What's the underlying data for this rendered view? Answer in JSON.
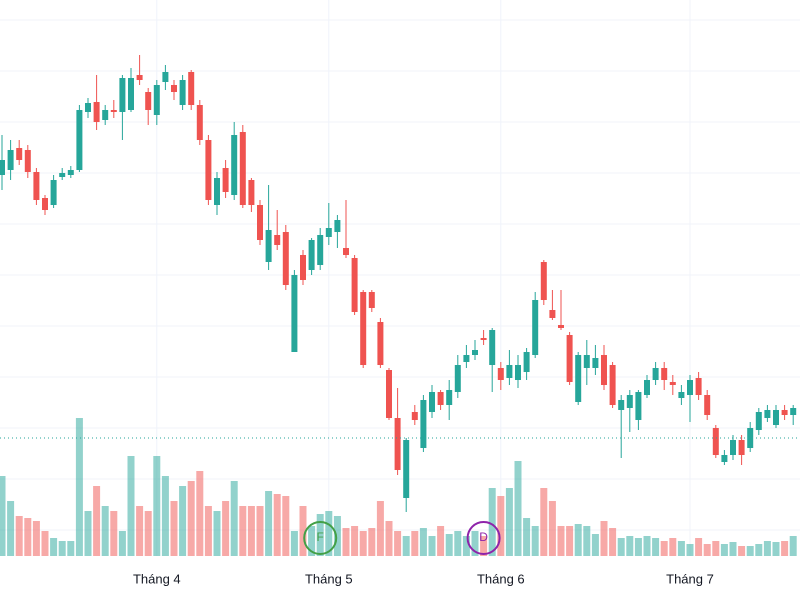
{
  "chart_data": {
    "type": "candlestick",
    "ylim": [
      44,
      600
    ],
    "y2lim": [
      0,
      556
    ],
    "grid_y": [
      580,
      529,
      478,
      427,
      376,
      325,
      274,
      223,
      172,
      121,
      70
    ],
    "xticks": [
      {
        "value": 18,
        "label": "Tháng 4"
      },
      {
        "value": 38,
        "label": "Tháng 5"
      },
      {
        "value": 58,
        "label": "Tháng 6"
      },
      {
        "value": 80,
        "label": "Tháng 7"
      }
    ],
    "up_color": "#26a69a",
    "down_color": "#ef5350",
    "price_line": 162,
    "markers": [
      {
        "label": "F",
        "index": 37,
        "color": "#43a047"
      },
      {
        "label": "D",
        "index": 56,
        "color": "#8e24aa"
      }
    ],
    "ohlc": [
      [
        425,
        465,
        410,
        440
      ],
      [
        430,
        460,
        420,
        450
      ],
      [
        452,
        460,
        435,
        440
      ],
      [
        450,
        455,
        422,
        428
      ],
      [
        428,
        432,
        395,
        400
      ],
      [
        402,
        405,
        385,
        390
      ],
      [
        395,
        425,
        392,
        420
      ],
      [
        423,
        432,
        420,
        427
      ],
      [
        425,
        434,
        422,
        430
      ],
      [
        430,
        495,
        428,
        490
      ],
      [
        488,
        502,
        482,
        497
      ],
      [
        498,
        525,
        470,
        478
      ],
      [
        480,
        495,
        475,
        490
      ],
      [
        490,
        500,
        482,
        488
      ],
      [
        488,
        525,
        460,
        522
      ],
      [
        490,
        532,
        488,
        522
      ],
      [
        525,
        545,
        515,
        520
      ],
      [
        508,
        512,
        475,
        490
      ],
      [
        485,
        520,
        475,
        515
      ],
      [
        518,
        535,
        510,
        528
      ],
      [
        515,
        520,
        500,
        508
      ],
      [
        495,
        525,
        490,
        520
      ],
      [
        528,
        530,
        490,
        495
      ],
      [
        495,
        500,
        455,
        460
      ],
      [
        460,
        465,
        395,
        400
      ],
      [
        395,
        428,
        385,
        422
      ],
      [
        432,
        440,
        402,
        408
      ],
      [
        405,
        478,
        400,
        465
      ],
      [
        468,
        475,
        392,
        395
      ],
      [
        420,
        422,
        388,
        395
      ],
      [
        395,
        400,
        355,
        360
      ],
      [
        338,
        415,
        330,
        370
      ],
      [
        365,
        390,
        350,
        355
      ],
      [
        368,
        375,
        310,
        315
      ],
      [
        248,
        330,
        248,
        325
      ],
      [
        345,
        350,
        315,
        320
      ],
      [
        330,
        362,
        325,
        360
      ],
      [
        335,
        372,
        330,
        365
      ],
      [
        363,
        397,
        355,
        372
      ],
      [
        368,
        385,
        352,
        380
      ],
      [
        352,
        400,
        342,
        345
      ],
      [
        342,
        345,
        285,
        288
      ],
      [
        308,
        310,
        232,
        235
      ],
      [
        308,
        310,
        288,
        292
      ],
      [
        278,
        282,
        232,
        235
      ],
      [
        230,
        232,
        180,
        182
      ],
      [
        182,
        212,
        125,
        130
      ],
      [
        102,
        162,
        88,
        160
      ],
      [
        188,
        195,
        175,
        180
      ],
      [
        152,
        205,
        148,
        200
      ],
      [
        188,
        215,
        182,
        208
      ],
      [
        208,
        210,
        190,
        195
      ],
      [
        195,
        220,
        180,
        210
      ],
      [
        208,
        245,
        202,
        235
      ],
      [
        238,
        255,
        232,
        245
      ],
      [
        245,
        260,
        240,
        250
      ],
      [
        262,
        270,
        255,
        260
      ],
      [
        235,
        272,
        208,
        270
      ],
      [
        232,
        238,
        210,
        220
      ],
      [
        222,
        250,
        215,
        235
      ],
      [
        220,
        245,
        212,
        235
      ],
      [
        228,
        252,
        220,
        248
      ],
      [
        245,
        308,
        242,
        300
      ],
      [
        338,
        340,
        295,
        300
      ],
      [
        290,
        310,
        280,
        282
      ],
      [
        275,
        310,
        270,
        272
      ],
      [
        265,
        268,
        215,
        218
      ],
      [
        198,
        248,
        195,
        245
      ],
      [
        232,
        260,
        215,
        245
      ],
      [
        232,
        255,
        225,
        242
      ],
      [
        245,
        255,
        210,
        215
      ],
      [
        235,
        238,
        192,
        195
      ],
      [
        190,
        205,
        142,
        200
      ],
      [
        192,
        210,
        168,
        205
      ],
      [
        180,
        210,
        170,
        208
      ],
      [
        205,
        225,
        202,
        220
      ],
      [
        220,
        238,
        215,
        232
      ],
      [
        232,
        238,
        210,
        220
      ],
      [
        218,
        225,
        205,
        215
      ],
      [
        202,
        215,
        195,
        208
      ],
      [
        205,
        225,
        178,
        220
      ],
      [
        222,
        228,
        200,
        205
      ],
      [
        205,
        210,
        180,
        185
      ],
      [
        172,
        175,
        142,
        145
      ],
      [
        138,
        150,
        135,
        145
      ],
      [
        145,
        165,
        140,
        160
      ],
      [
        160,
        165,
        135,
        145
      ],
      [
        152,
        178,
        148,
        172
      ],
      [
        170,
        192,
        165,
        188
      ],
      [
        182,
        195,
        178,
        190
      ],
      [
        175,
        195,
        172,
        190
      ],
      [
        190,
        195,
        180,
        185
      ],
      [
        185,
        195,
        175,
        192
      ]
    ],
    "volume": [
      80,
      55,
      40,
      38,
      35,
      25,
      18,
      15,
      15,
      138,
      45,
      70,
      50,
      45,
      25,
      100,
      50,
      45,
      100,
      80,
      55,
      70,
      75,
      85,
      50,
      45,
      55,
      75,
      50,
      50,
      50,
      65,
      62,
      60,
      25,
      50,
      30,
      42,
      45,
      40,
      28,
      30,
      25,
      28,
      55,
      35,
      25,
      20,
      25,
      28,
      20,
      30,
      22,
      25,
      20,
      25,
      20,
      68,
      60,
      68,
      95,
      38,
      30,
      68,
      55,
      30,
      30,
      32,
      30,
      22,
      35,
      28,
      18,
      20,
      18,
      20,
      18,
      15,
      18,
      15,
      12,
      18,
      12,
      15,
      12,
      14,
      10,
      10,
      12,
      15,
      14,
      15,
      20
    ]
  }
}
